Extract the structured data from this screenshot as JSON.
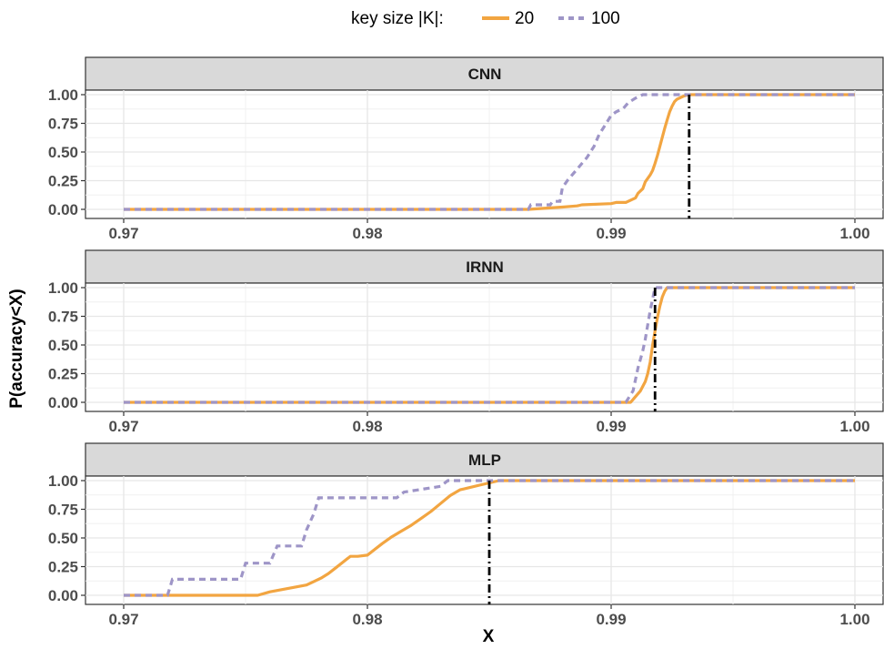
{
  "legend": {
    "title": "key size |K|:",
    "entries": [
      {
        "label": "20",
        "color": "#f2a541",
        "dash": "solid"
      },
      {
        "label": "100",
        "color": "#9e95c7",
        "dash": "dashed"
      }
    ]
  },
  "axes": {
    "xlabel": "X",
    "ylabel": "P(accuracy<X)"
  },
  "chart_data": [
    {
      "type": "line",
      "panel": "CNN",
      "xlim": [
        0.97,
        1.0
      ],
      "ylim": [
        0,
        1
      ],
      "x_ticks": [
        "0.97",
        "0.98",
        "0.99",
        "1.00"
      ],
      "y_ticks": [
        "0.00",
        "0.25",
        "0.50",
        "0.75",
        "1.00"
      ],
      "reference_x": 0.9932,
      "series": [
        {
          "name": "20",
          "color": "#f2a541",
          "x": [
            0.97,
            0.9866,
            0.988,
            0.9886,
            0.9888,
            0.99,
            0.9902,
            0.9906,
            0.991,
            0.9911,
            0.9913,
            0.9914,
            0.9916,
            0.9917,
            0.9918,
            0.9919,
            0.992,
            0.9921,
            0.9922,
            0.9923,
            0.9924,
            0.9925,
            0.9926,
            0.9927,
            0.9928,
            0.9929,
            0.993,
            0.9932,
            1.0
          ],
          "y": [
            0.0,
            0.0,
            0.02,
            0.03,
            0.04,
            0.05,
            0.06,
            0.06,
            0.1,
            0.14,
            0.18,
            0.24,
            0.3,
            0.34,
            0.4,
            0.47,
            0.55,
            0.63,
            0.71,
            0.78,
            0.85,
            0.9,
            0.94,
            0.96,
            0.97,
            0.98,
            0.99,
            1.0,
            1.0
          ]
        },
        {
          "name": "100",
          "color": "#9e95c7",
          "x": [
            0.97,
            0.9866,
            0.9867,
            0.9875,
            0.9876,
            0.9879,
            0.988,
            0.9882,
            0.9884,
            0.9886,
            0.9888,
            0.989,
            0.9893,
            0.9895,
            0.9898,
            0.99,
            0.9902,
            0.9905,
            0.9907,
            0.991,
            0.9913,
            0.9916,
            1.0
          ],
          "y": [
            0.0,
            0.0,
            0.04,
            0.04,
            0.07,
            0.07,
            0.19,
            0.25,
            0.3,
            0.35,
            0.4,
            0.45,
            0.55,
            0.65,
            0.75,
            0.82,
            0.85,
            0.88,
            0.93,
            0.97,
            1.0,
            1.0,
            1.0
          ]
        }
      ]
    },
    {
      "type": "line",
      "panel": "IRNN",
      "xlim": [
        0.97,
        1.0
      ],
      "ylim": [
        0,
        1
      ],
      "x_ticks": [
        "0.97",
        "0.98",
        "0.99",
        "1.00"
      ],
      "y_ticks": [
        "0.00",
        "0.25",
        "0.50",
        "0.75",
        "1.00"
      ],
      "reference_x": 0.9918,
      "series": [
        {
          "name": "20",
          "color": "#f2a541",
          "x": [
            0.97,
            0.9908,
            0.991,
            0.9912,
            0.9914,
            0.9915,
            0.9916,
            0.9917,
            0.9918,
            0.9919,
            0.992,
            0.9921,
            0.9922,
            0.9923,
            1.0
          ],
          "y": [
            0.0,
            0.0,
            0.05,
            0.1,
            0.18,
            0.25,
            0.35,
            0.5,
            0.62,
            0.74,
            0.84,
            0.92,
            0.97,
            1.0,
            1.0
          ]
        },
        {
          "name": "100",
          "color": "#9e95c7",
          "x": [
            0.97,
            0.9906,
            0.9909,
            0.9911,
            0.9913,
            0.9914,
            0.9916,
            0.9918,
            1.0
          ],
          "y": [
            0.0,
            0.0,
            0.1,
            0.3,
            0.45,
            0.55,
            0.8,
            1.0,
            1.0
          ]
        }
      ]
    },
    {
      "type": "line",
      "panel": "MLP",
      "xlim": [
        0.97,
        1.0
      ],
      "ylim": [
        0,
        1
      ],
      "x_ticks": [
        "0.97",
        "0.98",
        "0.99",
        "1.00"
      ],
      "y_ticks": [
        "0.00",
        "0.25",
        "0.50",
        "0.75",
        "1.00"
      ],
      "reference_x": 0.985,
      "series": [
        {
          "name": "20",
          "color": "#f2a541",
          "x": [
            0.97,
            0.9755,
            0.976,
            0.9765,
            0.977,
            0.9775,
            0.9778,
            0.9781,
            0.9784,
            0.9787,
            0.979,
            0.9793,
            0.9796,
            0.98,
            0.9803,
            0.9806,
            0.981,
            0.9814,
            0.9818,
            0.9822,
            0.9826,
            0.983,
            0.9834,
            0.9838,
            0.9842,
            0.9846,
            0.985,
            0.9854,
            1.0
          ],
          "y": [
            0.0,
            0.0,
            0.03,
            0.05,
            0.07,
            0.09,
            0.12,
            0.15,
            0.19,
            0.24,
            0.29,
            0.34,
            0.34,
            0.35,
            0.4,
            0.45,
            0.51,
            0.56,
            0.61,
            0.67,
            0.73,
            0.8,
            0.87,
            0.92,
            0.94,
            0.96,
            0.98,
            1.0,
            1.0
          ]
        },
        {
          "name": "100",
          "color": "#9e95c7",
          "x": [
            0.97,
            0.9718,
            0.972,
            0.9748,
            0.975,
            0.976,
            0.9763,
            0.9773,
            0.9775,
            0.9778,
            0.978,
            0.9812,
            0.9815,
            0.983,
            0.9833,
            1.0
          ],
          "y": [
            0.0,
            0.0,
            0.14,
            0.14,
            0.28,
            0.28,
            0.43,
            0.43,
            0.57,
            0.71,
            0.85,
            0.85,
            0.9,
            0.95,
            1.0,
            1.0
          ]
        }
      ]
    }
  ]
}
